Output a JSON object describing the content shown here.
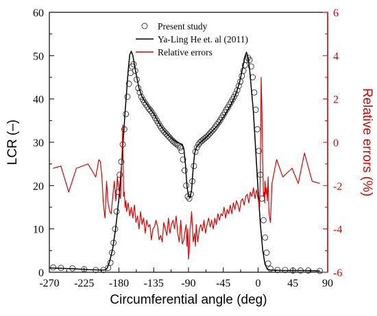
{
  "chart_data": {
    "type": "line",
    "xlabel": "Circumferential angle (deg)",
    "ylabel_left": "LCR (–)",
    "ylabel_right": "Relative errors (%)",
    "xlim": [
      -270,
      90
    ],
    "ylim_left": [
      0,
      60
    ],
    "ylim_right": [
      -6,
      6
    ],
    "x_ticks": [
      -270,
      -225,
      -180,
      -135,
      -90,
      -45,
      0,
      45,
      90
    ],
    "y_ticks_left": [
      0,
      10,
      20,
      30,
      40,
      50,
      60
    ],
    "y_ticks_right": [
      -6,
      -4,
      -2,
      0,
      2,
      4,
      6
    ],
    "x_tick_labels": [
      "-270",
      "-225",
      "-180",
      "-135",
      "-90",
      "-45",
      "0",
      "45",
      "90"
    ],
    "y_tick_labels_left": [
      "0",
      "10",
      "20",
      "30",
      "40",
      "50",
      "60"
    ],
    "y_tick_labels_right": [
      "-6",
      "-4",
      "-2",
      "0",
      "2",
      "4",
      "6"
    ],
    "legend_position": "top-center",
    "colors": {
      "present": "#333333",
      "reference": "#000000",
      "errors": "#e00000"
    },
    "series": [
      {
        "name": "Present study",
        "axis": "left",
        "style": "open-circle",
        "x": [
          -265,
          -255,
          -240,
          -225,
          -210,
          -200,
          -194,
          -191,
          -189,
          -187,
          -185,
          -183,
          -181,
          -179,
          -177,
          -175,
          -173,
          -171,
          -169,
          -167,
          -165,
          -163,
          -161,
          -159,
          -157,
          -155,
          -153,
          -151,
          -149,
          -147,
          -145,
          -143,
          -141,
          -139,
          -137,
          -135,
          -133,
          -131,
          -129,
          -127,
          -125,
          -123,
          -121,
          -119,
          -117,
          -115,
          -113,
          -111,
          -109,
          -107,
          -105,
          -103,
          -101,
          -99,
          -97,
          -95,
          -93,
          -91,
          -89,
          -87,
          -85,
          -83,
          -81,
          -79,
          -77,
          -75,
          -73,
          -71,
          -69,
          -67,
          -65,
          -63,
          -61,
          -59,
          -57,
          -55,
          -53,
          -51,
          -49,
          -47,
          -45,
          -43,
          -41,
          -39,
          -37,
          -35,
          -33,
          -31,
          -29,
          -27,
          -25,
          -23,
          -21,
          -19,
          -17,
          -15,
          -13,
          -11,
          -9,
          -7,
          -5,
          -3,
          -1,
          1,
          3,
          5,
          7,
          9,
          11,
          13,
          16,
          25,
          35,
          45,
          55,
          65,
          80
        ],
        "y": [
          1.1,
          1.0,
          0.9,
          0.7,
          0.5,
          0.5,
          1.0,
          2.2,
          4.5,
          6.8,
          10.0,
          14.0,
          18.5,
          22.5,
          25.5,
          29.5,
          33.0,
          36.5,
          40.5,
          43.5,
          46.0,
          47.5,
          48.0,
          46.5,
          44.5,
          42.5,
          41.5,
          40.5,
          39.8,
          39.2,
          38.7,
          38.2,
          37.7,
          37.3,
          36.8,
          36.2,
          35.6,
          35.0,
          34.4,
          33.8,
          33.3,
          32.8,
          32.4,
          32.0,
          31.6,
          31.2,
          30.8,
          30.4,
          30.1,
          29.8,
          29.5,
          29.3,
          28.8,
          28.0,
          26.0,
          23.5,
          20.0,
          17.5,
          17.0,
          18.0,
          21.0,
          24.5,
          27.8,
          28.8,
          29.5,
          30.0,
          30.3,
          30.6,
          30.9,
          31.2,
          31.5,
          31.9,
          32.3,
          32.7,
          33.1,
          33.6,
          34.1,
          34.6,
          35.1,
          35.7,
          36.3,
          36.9,
          37.5,
          38.1,
          38.7,
          39.3,
          39.9,
          40.5,
          41.2,
          42.0,
          43.0,
          44.0,
          45.3,
          46.5,
          47.8,
          49.0,
          49.5,
          49.0,
          47.5,
          45.0,
          41.5,
          37.5,
          33.0,
          28.0,
          22.5,
          17.0,
          12.0,
          8.0,
          4.5,
          2.0,
          0.8,
          0.5,
          0.5,
          0.4,
          0.4,
          0.4,
          0.3
        ]
      },
      {
        "name": "Ya-Ling He et. al (2011)",
        "axis": "left",
        "style": "solid",
        "x": [
          -270,
          -240,
          -220,
          -202,
          -198,
          -195,
          -192,
          -188,
          -184,
          -180,
          -176,
          -172,
          -168,
          -166,
          -164,
          -162,
          -158,
          -154,
          -150,
          -146,
          -142,
          -138,
          -134,
          -130,
          -126,
          -122,
          -118,
          -114,
          -110,
          -106,
          -102,
          -98,
          -96,
          -94,
          -92,
          -90,
          -88,
          -86,
          -84,
          -82,
          -80,
          -76,
          -72,
          -68,
          -64,
          -60,
          -56,
          -52,
          -48,
          -44,
          -40,
          -36,
          -32,
          -28,
          -24,
          -20,
          -17,
          -15,
          -13,
          -11,
          -9,
          -6,
          -3,
          0,
          3,
          6,
          9,
          12,
          16,
          30,
          60,
          80
        ],
        "y": [
          1.0,
          0.8,
          0.6,
          0.5,
          0.5,
          1.0,
          2.5,
          5.5,
          10.5,
          17.0,
          26.0,
          37.0,
          46.5,
          50.2,
          51.0,
          50.0,
          46.0,
          42.5,
          40.5,
          39.3,
          38.3,
          37.3,
          36.3,
          35.0,
          33.8,
          32.8,
          32.0,
          31.3,
          30.6,
          30.1,
          29.8,
          29.5,
          28.5,
          25.0,
          20.0,
          17.5,
          17.2,
          19.0,
          24.0,
          27.5,
          28.8,
          29.7,
          30.4,
          31.0,
          31.7,
          32.4,
          33.2,
          34.0,
          35.0,
          36.0,
          37.2,
          38.4,
          39.8,
          41.5,
          43.8,
          47.0,
          49.8,
          50.8,
          49.5,
          47.0,
          43.0,
          37.0,
          28.0,
          19.0,
          11.0,
          5.0,
          1.8,
          0.7,
          0.5,
          0.4,
          0.4,
          0.3
        ]
      },
      {
        "name": "Relative errors",
        "axis": "right",
        "style": "solid",
        "x": [
          -265,
          -255,
          -245,
          -235,
          -220,
          -210,
          -206,
          -204,
          -202,
          -200,
          -198,
          -196,
          -194,
          -192,
          -190,
          -188,
          -186,
          -184,
          -182,
          -180,
          -178,
          -176,
          -175,
          -174,
          -173,
          -172,
          -171,
          -170,
          -168,
          -166,
          -164,
          -162,
          -160,
          -158,
          -156,
          -154,
          -152,
          -150,
          -148,
          -146,
          -144,
          -142,
          -140,
          -138,
          -136,
          -134,
          -132,
          -130,
          -128,
          -126,
          -124,
          -122,
          -120,
          -118,
          -116,
          -114,
          -112,
          -110,
          -108,
          -106,
          -104,
          -102,
          -100,
          -98,
          -96,
          -95,
          -94,
          -93,
          -92,
          -91,
          -90,
          -89,
          -88,
          -87,
          -86,
          -85,
          -84,
          -83,
          -82,
          -81,
          -80,
          -78,
          -76,
          -74,
          -72,
          -70,
          -68,
          -66,
          -64,
          -62,
          -60,
          -58,
          -56,
          -54,
          -52,
          -50,
          -48,
          -46,
          -44,
          -42,
          -40,
          -38,
          -36,
          -34,
          -32,
          -30,
          -28,
          -26,
          -24,
          -22,
          -20,
          -18,
          -16,
          -14,
          -12,
          -10,
          -8,
          -6,
          -4,
          -2,
          0,
          2,
          3,
          4,
          5,
          6,
          7,
          8,
          8.5,
          9,
          10,
          11,
          12,
          13,
          14,
          15,
          16,
          18,
          24,
          32,
          44,
          52,
          60,
          70,
          80
        ],
        "y": [
          -1.2,
          -1.1,
          -2.3,
          -1.2,
          -1.0,
          -1.6,
          -0.8,
          -0.9,
          -1.6,
          -2.9,
          -3.5,
          -1.8,
          -2.8,
          -3.2,
          -3.3,
          -2.5,
          -1.8,
          -2.7,
          -1.6,
          -2.2,
          -2.6,
          -0.5,
          0.8,
          -2.5,
          -2.3,
          -3.0,
          -2.7,
          -3.2,
          -2.8,
          -3.4,
          -3.0,
          -3.5,
          -2.9,
          -3.7,
          -3.4,
          -4.0,
          -3.2,
          -3.8,
          -3.5,
          -4.2,
          -3.6,
          -3.9,
          -3.8,
          -4.5,
          -4.0,
          -3.9,
          -3.6,
          -3.9,
          -4.5,
          -4.3,
          -4.6,
          -3.7,
          -4.0,
          -4.3,
          -3.5,
          -4.2,
          -3.8,
          -3.6,
          -4.0,
          -3.4,
          -4.2,
          -4.6,
          -3.6,
          -4.7,
          -4.5,
          -4.2,
          -4.0,
          -3.8,
          -4.8,
          -4.0,
          -5.4,
          -5.0,
          -4.0,
          -3.7,
          -3.2,
          -3.8,
          -4.6,
          -4.4,
          -4.2,
          -4.8,
          -3.8,
          -4.6,
          -4.0,
          -3.8,
          -4.1,
          -3.6,
          -4.2,
          -3.8,
          -3.5,
          -3.9,
          -3.6,
          -4.0,
          -3.5,
          -3.8,
          -3.3,
          -3.6,
          -3.3,
          -3.4,
          -3.0,
          -3.5,
          -3.1,
          -3.3,
          -2.9,
          -3.3,
          -2.8,
          -3.1,
          -2.7,
          -2.9,
          -3.2,
          -2.7,
          -2.6,
          -2.9,
          -2.5,
          -2.4,
          -2.8,
          -2.3,
          -2.5,
          -2.1,
          -2.6,
          -2.2,
          -2.6,
          -3.0,
          -1.2,
          3.0,
          1.5,
          -0.8,
          -2.5,
          -2.3,
          -2.8,
          -1.8,
          -2.4,
          -2.1,
          -2.7,
          -1.6,
          -3.2,
          -3.5,
          -3.7,
          -1.9,
          -0.8,
          -1.6,
          -1.2,
          -1.9,
          -0.5,
          -1.8,
          -1.9
        ]
      }
    ]
  }
}
